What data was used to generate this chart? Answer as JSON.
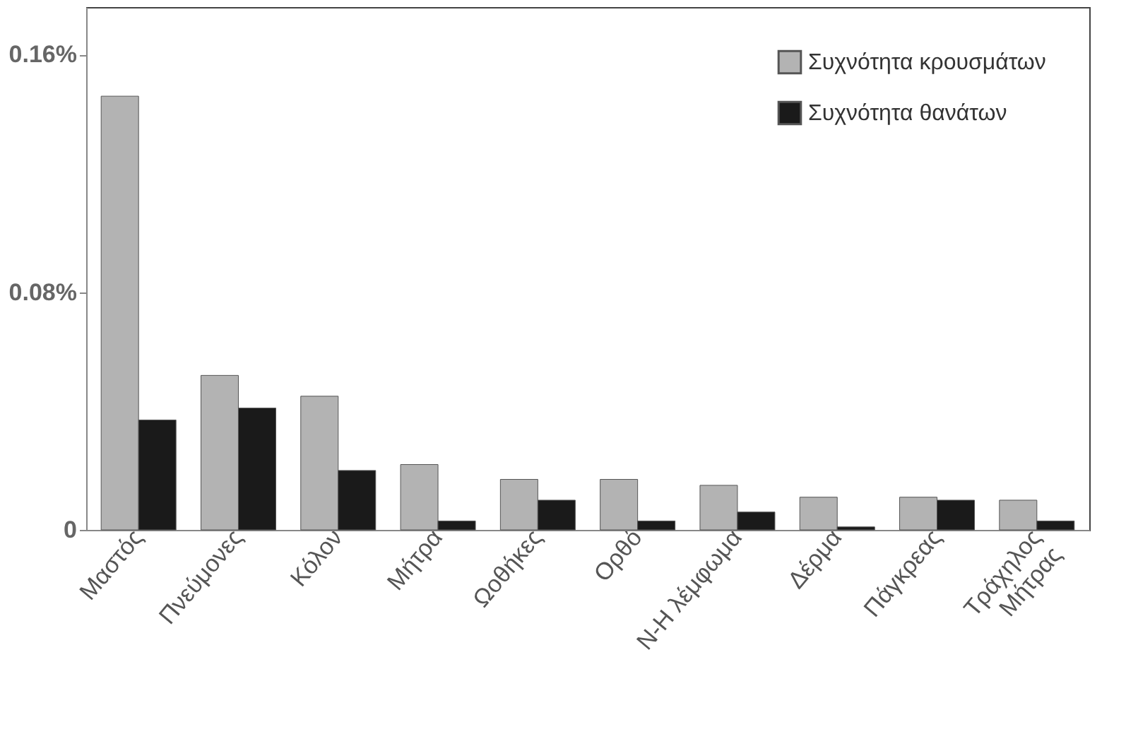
{
  "chart_data": {
    "type": "bar",
    "categories": [
      "Μαστός",
      "Πνεύμονες",
      "Κόλον",
      "Μήτρα",
      "Ωοθήκες",
      "Ορθό",
      "Ν-Η λέμφωμα",
      "Δέρμα",
      "Πάγκρεας",
      "Τράχηλος\nΜήτρας"
    ],
    "series": [
      {
        "name": "Συχνότητα κρουσμάτων",
        "color": "#b3b3b3",
        "values": [
          0.146,
          0.052,
          0.045,
          0.022,
          0.017,
          0.017,
          0.015,
          0.011,
          0.011,
          0.01
        ]
      },
      {
        "name": "Συχνότητα θανάτων",
        "color": "#1a1a1a",
        "values": [
          0.037,
          0.041,
          0.02,
          0.003,
          0.01,
          0.003,
          0.006,
          0.001,
          0.01,
          0.003
        ]
      }
    ],
    "ylim": [
      0,
      0.176
    ],
    "yticks": [
      {
        "value": 0,
        "label": "0"
      },
      {
        "value": 0.08,
        "label": "0.08%"
      },
      {
        "value": 0.16,
        "label": "0.16%"
      }
    ],
    "grid": false,
    "legend": "top right"
  }
}
